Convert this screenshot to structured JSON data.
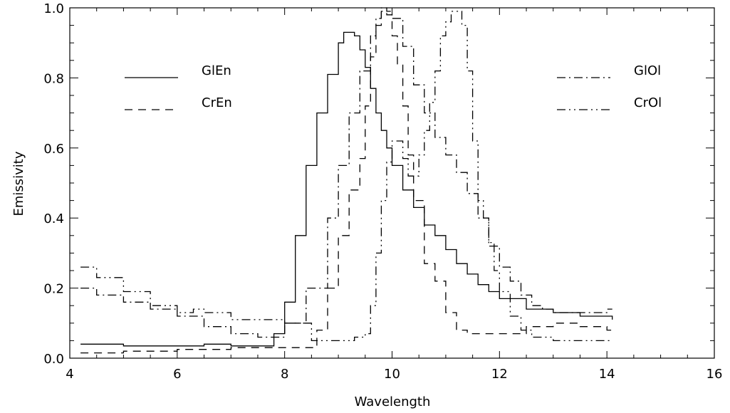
{
  "chart_data": {
    "type": "line",
    "title": "",
    "xlabel": "Wavelength",
    "ylabel": "Emissivity",
    "xlim": [
      4,
      16
    ],
    "ylim": [
      0,
      1
    ],
    "grid": false,
    "legend_left_placement": "top-left",
    "legend_right_placement": "top-right",
    "x_ticks": [
      {
        "value": 4,
        "label": "4"
      },
      {
        "value": 6,
        "label": "6"
      },
      {
        "value": 8,
        "label": "8"
      },
      {
        "value": 10,
        "label": "10"
      },
      {
        "value": 12,
        "label": "12"
      },
      {
        "value": 14,
        "label": "14"
      },
      {
        "value": 16,
        "label": "16"
      }
    ],
    "y_ticks": [
      {
        "value": 0,
        "label": "0.0"
      },
      {
        "value": 0.2,
        "label": "0.2"
      },
      {
        "value": 0.4,
        "label": "0.4"
      },
      {
        "value": 0.6,
        "label": "0.6"
      },
      {
        "value": 0.8,
        "label": "0.8"
      },
      {
        "value": 1.0,
        "label": "1.0"
      }
    ],
    "series": [
      {
        "name": "GlEn",
        "style": "solid",
        "color": "#000000",
        "x": [
          4.2,
          5.0,
          6.0,
          6.5,
          7.0,
          7.5,
          7.8,
          8.0,
          8.2,
          8.4,
          8.6,
          8.8,
          9.0,
          9.1,
          9.2,
          9.3,
          9.4,
          9.5,
          9.6,
          9.7,
          9.8,
          9.9,
          10.0,
          10.2,
          10.4,
          10.6,
          10.8,
          11.0,
          11.2,
          11.4,
          11.6,
          11.8,
          12.0,
          12.5,
          13.0,
          13.5,
          14.1
        ],
        "y": [
          0.04,
          0.035,
          0.035,
          0.04,
          0.035,
          0.035,
          0.07,
          0.16,
          0.35,
          0.55,
          0.7,
          0.81,
          0.9,
          0.93,
          0.93,
          0.92,
          0.88,
          0.83,
          0.77,
          0.7,
          0.65,
          0.6,
          0.55,
          0.48,
          0.43,
          0.38,
          0.35,
          0.31,
          0.27,
          0.24,
          0.21,
          0.19,
          0.17,
          0.14,
          0.13,
          0.12,
          0.11
        ]
      },
      {
        "name": "CrEn",
        "style": "dashed",
        "color": "#000000",
        "x": [
          4.2,
          5.0,
          6.0,
          7.0,
          8.0,
          8.4,
          8.6,
          8.8,
          9.0,
          9.2,
          9.4,
          9.5,
          9.6,
          9.7,
          9.8,
          9.9,
          10.0,
          10.1,
          10.2,
          10.3,
          10.4,
          10.6,
          10.8,
          11.0,
          11.2,
          11.4,
          11.6,
          12.0,
          12.5,
          13.0,
          13.5,
          14.0,
          14.1
        ],
        "y": [
          0.015,
          0.02,
          0.025,
          0.03,
          0.03,
          0.03,
          0.08,
          0.2,
          0.35,
          0.48,
          0.57,
          0.72,
          0.86,
          0.95,
          0.99,
          0.98,
          0.92,
          0.84,
          0.72,
          0.58,
          0.45,
          0.27,
          0.22,
          0.13,
          0.08,
          0.07,
          0.07,
          0.07,
          0.09,
          0.1,
          0.09,
          0.08,
          0.08
        ]
      },
      {
        "name": "GlOl",
        "style": "dashdot",
        "color": "#000000",
        "x": [
          4.2,
          4.5,
          5.0,
          5.5,
          6.0,
          6.5,
          7.0,
          7.5,
          8.0,
          8.4,
          8.8,
          9.0,
          9.2,
          9.4,
          9.6,
          9.7,
          9.8,
          9.9,
          10.0,
          10.2,
          10.4,
          10.6,
          10.8,
          11.0,
          11.2,
          11.4,
          11.6,
          11.8,
          12.0,
          12.2,
          12.4,
          12.6,
          12.8,
          13.0,
          13.5,
          14.0,
          14.1
        ],
        "y": [
          0.2,
          0.18,
          0.16,
          0.14,
          0.12,
          0.09,
          0.07,
          0.06,
          0.1,
          0.2,
          0.4,
          0.55,
          0.7,
          0.82,
          0.92,
          0.97,
          1.0,
          0.99,
          0.97,
          0.89,
          0.78,
          0.7,
          0.63,
          0.58,
          0.53,
          0.47,
          0.4,
          0.32,
          0.26,
          0.22,
          0.18,
          0.15,
          0.14,
          0.13,
          0.13,
          0.14,
          0.14
        ]
      },
      {
        "name": "CrOl",
        "style": "dashdotdot",
        "color": "#000000",
        "x": [
          4.2,
          4.5,
          5.0,
          5.5,
          6.0,
          6.3,
          6.5,
          7.0,
          7.5,
          8.0,
          8.5,
          9.0,
          9.3,
          9.5,
          9.6,
          9.7,
          9.8,
          9.9,
          10.0,
          10.1,
          10.2,
          10.3,
          10.4,
          10.5,
          10.6,
          10.7,
          10.8,
          10.9,
          11.0,
          11.1,
          11.2,
          11.3,
          11.4,
          11.5,
          11.6,
          11.7,
          11.8,
          11.9,
          12.0,
          12.2,
          12.4,
          12.6,
          13.0,
          13.5,
          14.1
        ],
        "y": [
          0.26,
          0.23,
          0.19,
          0.15,
          0.13,
          0.14,
          0.13,
          0.11,
          0.11,
          0.1,
          0.05,
          0.05,
          0.06,
          0.07,
          0.15,
          0.3,
          0.45,
          0.56,
          0.62,
          0.62,
          0.57,
          0.52,
          0.52,
          0.58,
          0.65,
          0.73,
          0.82,
          0.92,
          0.96,
          0.99,
          0.99,
          0.95,
          0.82,
          0.62,
          0.45,
          0.4,
          0.33,
          0.25,
          0.19,
          0.12,
          0.08,
          0.06,
          0.05,
          0.05,
          0.05
        ]
      }
    ]
  },
  "legend_left": [
    {
      "label": "GlEn",
      "style": "solid"
    },
    {
      "label": "CrEn",
      "style": "dashed"
    }
  ],
  "legend_right": [
    {
      "label": "GlOl",
      "style": "dashdot"
    },
    {
      "label": "CrOl",
      "style": "dashdotdot"
    }
  ]
}
